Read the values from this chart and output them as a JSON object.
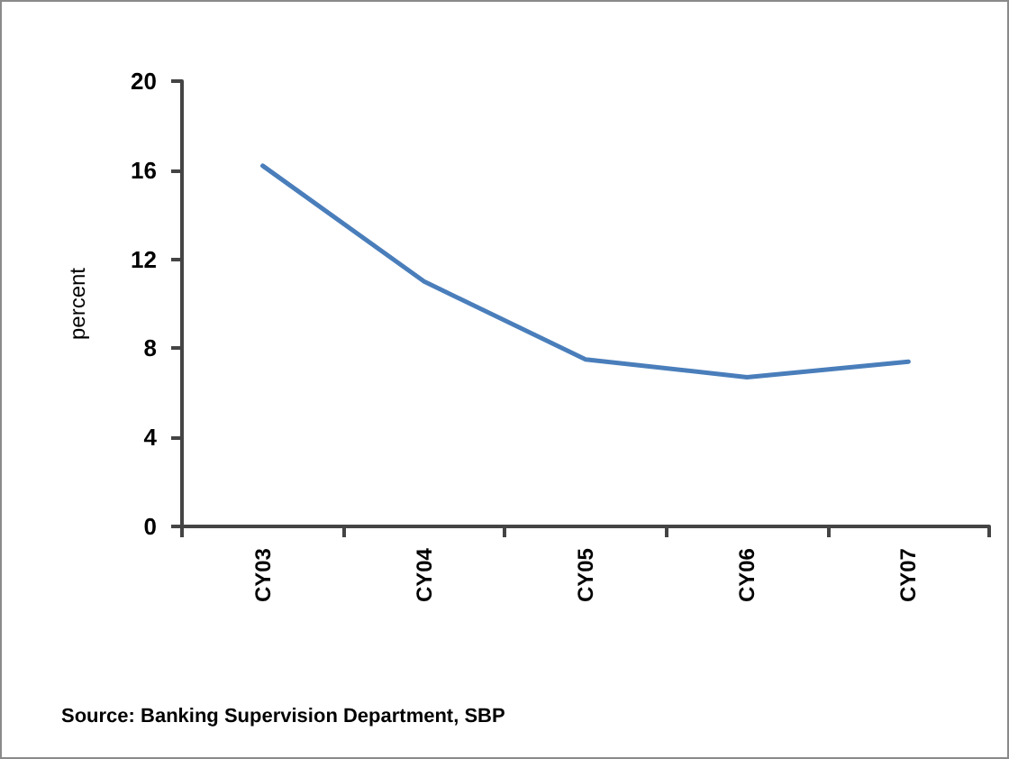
{
  "chart_data": {
    "type": "line",
    "ylabel": "percent",
    "categories": [
      "CY03",
      "CY04",
      "CY05",
      "CY06",
      "CY07"
    ],
    "series": [
      {
        "color": "#4a7ebb",
        "values": [
          16.2,
          11.0,
          7.5,
          6.7,
          7.4
        ]
      }
    ],
    "ylim": [
      0,
      20
    ],
    "yticks": [
      0,
      4,
      8,
      12,
      16,
      20
    ],
    "grid": false,
    "marker": "none",
    "line_style": "solid",
    "annotations": [
      "Source: Banking Supervision Department, SBP"
    ]
  }
}
